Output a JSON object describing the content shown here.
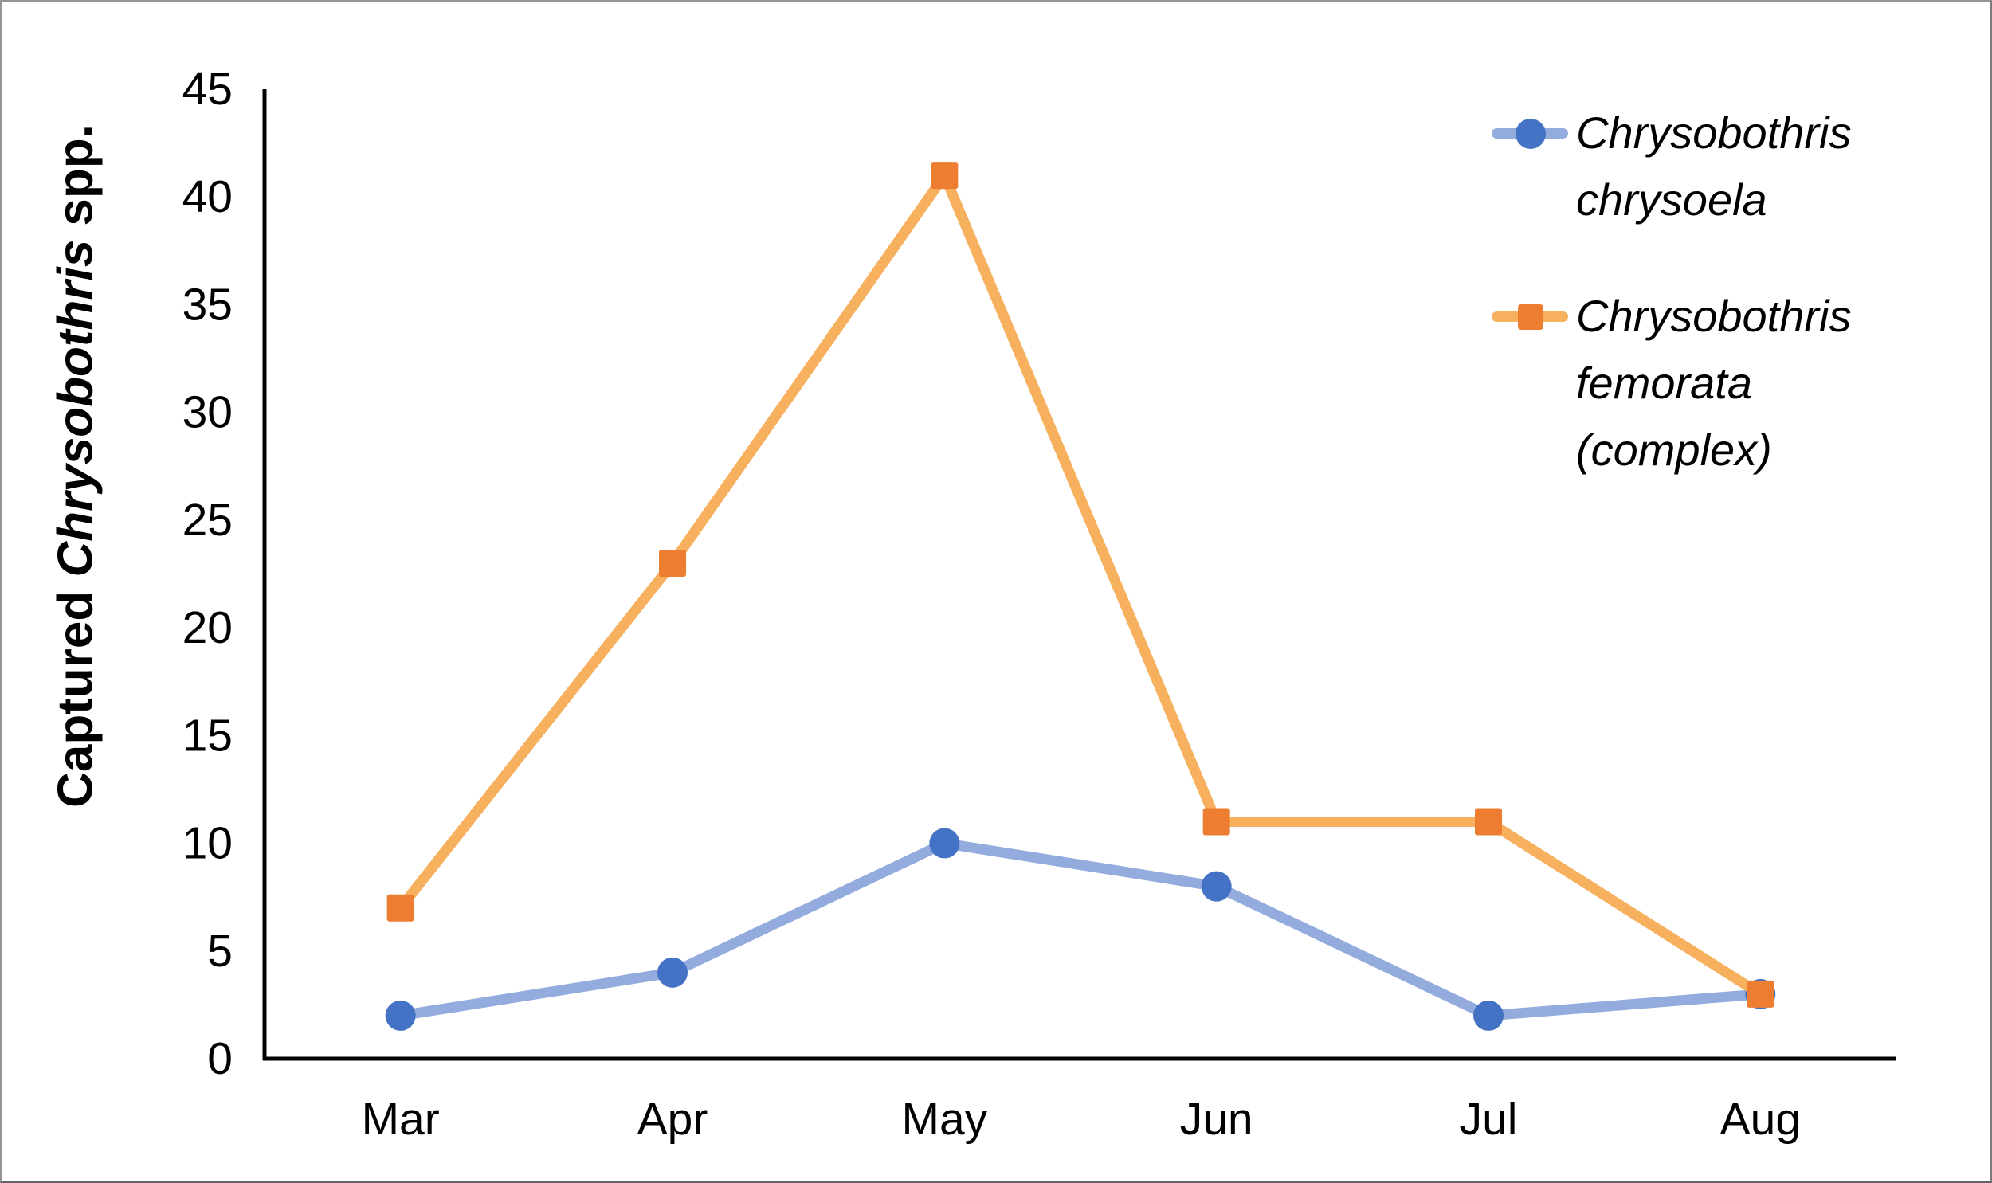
{
  "chart_data": {
    "type": "line",
    "title": "",
    "categories": [
      "Mar",
      "Apr",
      "May",
      "Jun",
      "Jul",
      "Aug"
    ],
    "series": [
      {
        "name": "Chrysobothris chrysoela",
        "label_lines": [
          "Chrysobothris",
          "chrysoela"
        ],
        "values": [
          2,
          4,
          10,
          8,
          2,
          3
        ],
        "line_color": "#93ACDD",
        "marker_color": "#4472C4",
        "marker": "circle"
      },
      {
        "name": "Chrysobothris femorata (complex)",
        "label_lines": [
          "Chrysobothris",
          "femorata",
          "(complex)"
        ],
        "values": [
          7,
          23,
          41,
          11,
          11,
          3
        ],
        "line_color": "#F6B05E",
        "marker_color": "#ED7D31",
        "marker": "square"
      }
    ],
    "xlabel": "",
    "ylabel": "Captured Chrysobothris spp.",
    "ylabel_parts": {
      "prefix": "Captured ",
      "italic": "Chrysobothris",
      "suffix": " spp."
    },
    "yticks": [
      0,
      5,
      10,
      15,
      20,
      25,
      30,
      35,
      40,
      45
    ],
    "ylim": [
      0,
      45
    ],
    "grid": false,
    "legend_position": "right-top",
    "axis_color": "#000000",
    "text_color": "#000000"
  }
}
